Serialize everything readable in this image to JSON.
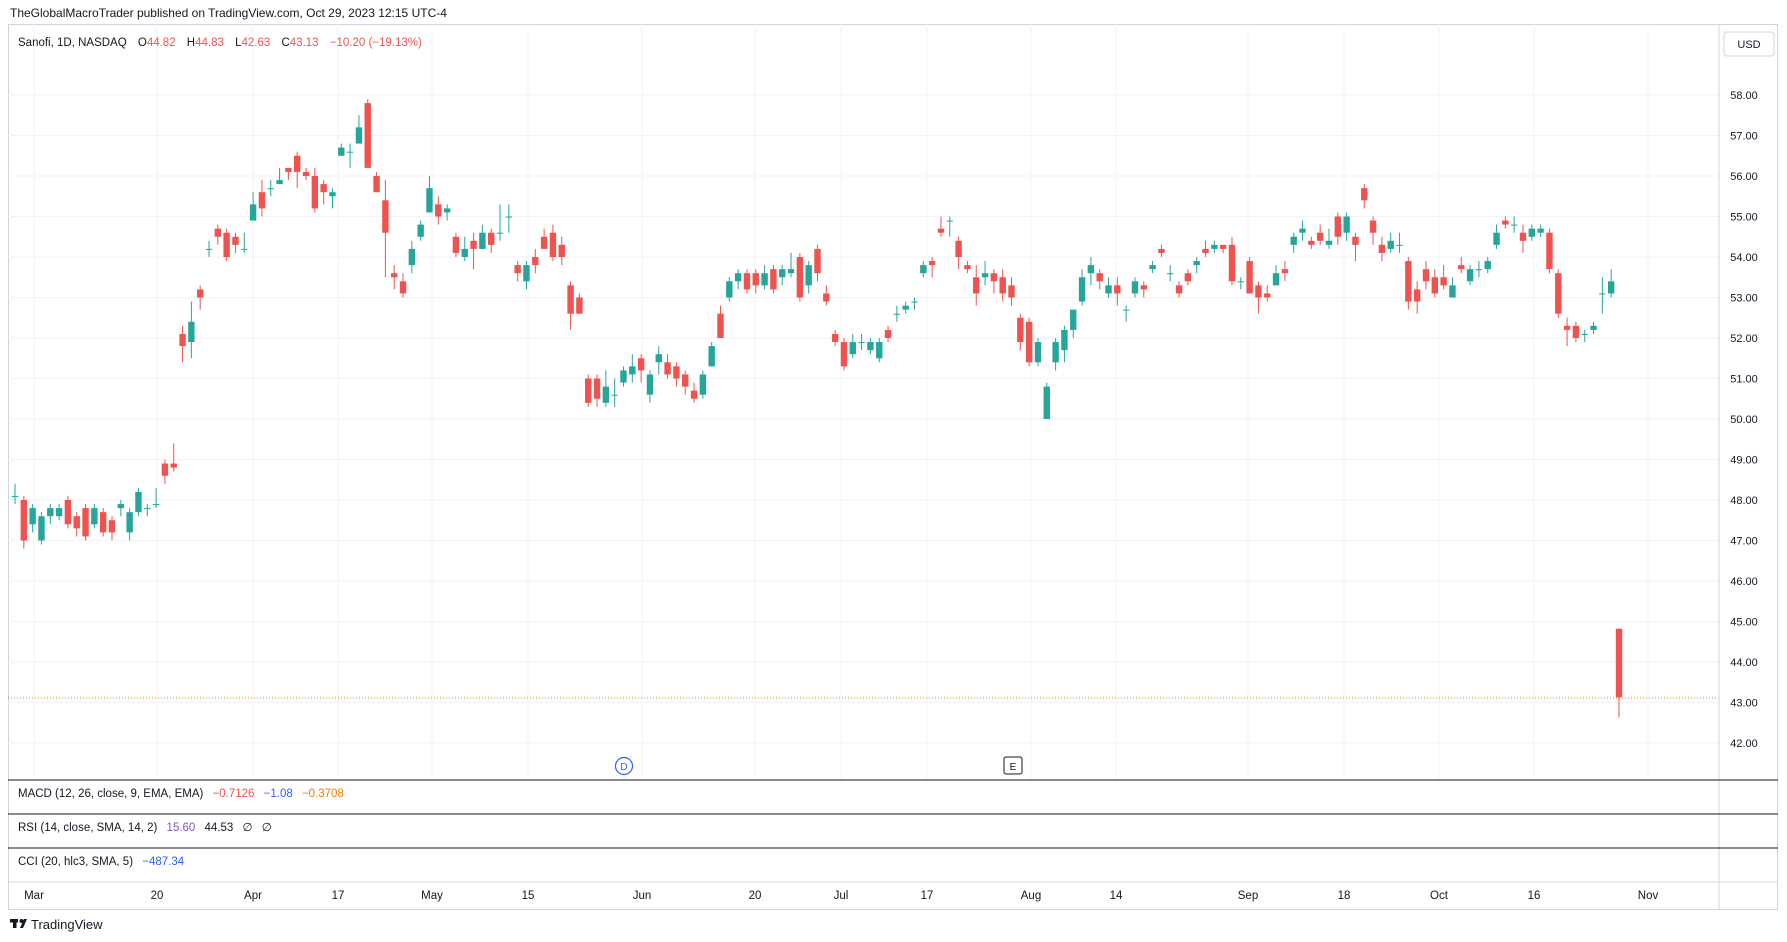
{
  "header": {
    "published": "TheGlobalMacroTrader published on TradingView.com, Oct 29, 2023 12:15 UTC-4"
  },
  "legend": {
    "symbol": "Sanofi, 1D, NASDAQ",
    "o_label": "O",
    "o": "44.82",
    "h_label": "H",
    "h": "44.83",
    "l_label": "L",
    "l": "42.63",
    "c_label": "C",
    "c": "43.13",
    "change": "−10.20 (−19.13%)"
  },
  "currency": "USD",
  "events": {
    "dividend": "D",
    "earnings": "E"
  },
  "indicators": {
    "macd": {
      "label": "MACD (12, 26, close, 9, EMA, EMA)",
      "v1": "−0.7126",
      "v2": "−1.08",
      "v3": "−0.3708"
    },
    "rsi": {
      "label": "RSI (14, close, SMA, 14, 2)",
      "v1": "15.60",
      "v2": "44.53",
      "v3": "∅",
      "v4": "∅"
    },
    "cci": {
      "label": "CCI (20, hlc3, SMA, 5)",
      "v1": "−487.34"
    }
  },
  "footer": {
    "brand": "TradingView"
  },
  "colors": {
    "up": "#26a69a",
    "down": "#ef5350",
    "grid": "#f0f3fa",
    "text": "#131722",
    "macd_blue": "#2962ff",
    "macd_orange": "#f57c00",
    "rsi_purple": "#7e57c2"
  },
  "chart_data": {
    "type": "candlestick",
    "title": "Sanofi, 1D, NASDAQ",
    "ylim": [
      41.5,
      58.5
    ],
    "y_ticks": [
      "42.00",
      "43.00",
      "44.00",
      "45.00",
      "46.00",
      "47.00",
      "48.00",
      "49.00",
      "50.00",
      "51.00",
      "52.00",
      "53.00",
      "54.00",
      "55.00",
      "56.00",
      "57.00",
      "58.00"
    ],
    "x_ticks": [
      "Mar",
      "20",
      "Apr",
      "17",
      "May",
      "15",
      "Jun",
      "20",
      "Jul",
      "17",
      "Aug",
      "14",
      "Sep",
      "18",
      "Oct",
      "16",
      "Nov"
    ],
    "last_price": 43.13,
    "candles": [
      [
        48.1,
        48.1,
        48.4,
        47.9
      ],
      [
        48.0,
        47.0,
        48.1,
        46.8
      ],
      [
        47.4,
        47.8,
        47.9,
        47.2
      ],
      [
        47.0,
        47.6,
        47.7,
        46.9
      ],
      [
        47.6,
        47.8,
        47.9,
        47.4
      ],
      [
        47.6,
        47.8,
        47.9,
        47.5
      ],
      [
        48.0,
        47.4,
        48.1,
        47.3
      ],
      [
        47.6,
        47.3,
        47.7,
        47.1
      ],
      [
        47.8,
        47.1,
        47.9,
        47.0
      ],
      [
        47.4,
        47.8,
        47.9,
        47.3
      ],
      [
        47.7,
        47.2,
        47.8,
        47.1
      ],
      [
        47.5,
        47.2,
        47.6,
        47.0
      ],
      [
        47.8,
        47.9,
        48.0,
        47.6
      ],
      [
        47.2,
        47.7,
        47.8,
        47.0
      ],
      [
        47.7,
        48.2,
        48.3,
        47.6
      ],
      [
        47.8,
        47.8,
        47.9,
        47.6
      ],
      [
        47.9,
        47.9,
        48.3,
        47.8
      ],
      [
        48.9,
        48.6,
        49.0,
        48.4
      ],
      [
        48.9,
        48.8,
        49.4,
        48.7
      ],
      [
        52.1,
        51.8,
        52.3,
        51.4
      ],
      [
        51.9,
        52.4,
        52.9,
        51.5
      ],
      [
        53.2,
        53.0,
        53.3,
        52.7
      ],
      [
        54.2,
        54.2,
        54.4,
        54.0
      ],
      [
        54.7,
        54.5,
        54.8,
        54.3
      ],
      [
        54.6,
        54.0,
        54.7,
        53.9
      ],
      [
        54.5,
        54.3,
        54.6,
        54.1
      ],
      [
        54.2,
        54.2,
        54.6,
        54.1
      ],
      [
        54.9,
        55.3,
        55.6,
        55.0
      ],
      [
        55.6,
        55.2,
        55.9,
        55.0
      ],
      [
        55.7,
        55.7,
        55.9,
        55.5
      ],
      [
        55.8,
        55.9,
        56.2,
        55.8
      ],
      [
        56.2,
        56.1,
        56.2,
        55.9
      ],
      [
        56.5,
        56.1,
        56.6,
        55.7
      ],
      [
        56.1,
        56.0,
        56.2,
        55.9
      ],
      [
        56.0,
        55.2,
        56.2,
        55.1
      ],
      [
        55.8,
        55.6,
        55.9,
        55.3
      ],
      [
        55.5,
        55.6,
        55.7,
        55.2
      ],
      [
        56.5,
        56.7,
        56.8,
        56.5
      ],
      [
        56.6,
        56.6,
        56.8,
        56.2
      ],
      [
        56.8,
        57.2,
        57.5,
        57.0
      ],
      [
        57.8,
        56.2,
        57.9,
        56.2
      ],
      [
        56.0,
        55.6,
        56.1,
        55.6
      ],
      [
        55.4,
        54.6,
        55.9,
        53.5
      ],
      [
        53.6,
        53.5,
        53.8,
        53.2
      ],
      [
        53.4,
        53.1,
        53.6,
        53.0
      ],
      [
        53.8,
        54.2,
        54.4,
        53.6
      ],
      [
        54.5,
        54.8,
        54.9,
        54.4
      ],
      [
        55.1,
        55.7,
        56.0,
        55.2
      ],
      [
        55.3,
        55.0,
        55.5,
        54.8
      ],
      [
        55.1,
        55.2,
        55.3,
        54.9
      ],
      [
        54.5,
        54.1,
        54.6,
        54.0
      ],
      [
        54.0,
        54.2,
        54.5,
        53.9
      ],
      [
        54.4,
        54.2,
        54.6,
        53.7
      ],
      [
        54.2,
        54.6,
        54.8,
        54.2
      ],
      [
        54.6,
        54.3,
        54.7,
        54.1
      ],
      [
        54.6,
        54.6,
        55.3,
        54.4
      ],
      [
        55.0,
        55.0,
        55.3,
        54.6
      ],
      [
        53.8,
        53.6,
        53.9,
        53.4
      ],
      [
        53.4,
        53.8,
        53.9,
        53.2
      ],
      [
        54.0,
        53.8,
        54.2,
        53.6
      ],
      [
        54.5,
        54.2,
        54.7,
        54.2
      ],
      [
        54.6,
        54.0,
        54.8,
        53.9
      ],
      [
        54.3,
        54.0,
        54.5,
        53.8
      ],
      [
        53.3,
        52.6,
        53.4,
        52.2
      ],
      [
        53.0,
        52.6,
        53.1,
        52.6
      ],
      [
        51.0,
        50.4,
        51.1,
        50.3
      ],
      [
        51.0,
        50.5,
        51.1,
        50.3
      ],
      [
        50.4,
        50.8,
        51.2,
        50.3
      ],
      [
        50.6,
        50.6,
        51.0,
        50.3
      ],
      [
        50.9,
        51.2,
        51.3,
        50.8
      ],
      [
        51.1,
        51.3,
        51.6,
        50.9
      ],
      [
        51.5,
        51.2,
        51.6,
        50.9
      ],
      [
        50.6,
        51.1,
        51.2,
        50.4
      ],
      [
        51.4,
        51.6,
        51.8,
        51.1
      ],
      [
        51.4,
        51.1,
        51.6,
        51.0
      ],
      [
        51.3,
        51.0,
        51.4,
        50.8
      ],
      [
        51.1,
        50.8,
        51.2,
        50.6
      ],
      [
        50.7,
        50.5,
        50.9,
        50.4
      ],
      [
        50.6,
        51.1,
        51.2,
        50.5
      ],
      [
        51.3,
        51.8,
        51.9,
        51.3
      ],
      [
        52.6,
        52.0,
        52.8,
        52.0
      ],
      [
        53.0,
        53.4,
        53.5,
        52.9
      ],
      [
        53.4,
        53.6,
        53.7,
        53.2
      ],
      [
        53.6,
        53.2,
        53.7,
        53.1
      ],
      [
        53.6,
        53.3,
        53.7,
        53.1
      ],
      [
        53.3,
        53.6,
        53.8,
        53.2
      ],
      [
        53.7,
        53.2,
        53.8,
        53.1
      ],
      [
        53.5,
        53.7,
        53.8,
        53.3
      ],
      [
        53.6,
        53.7,
        54.1,
        53.5
      ],
      [
        54.0,
        53.0,
        54.1,
        52.9
      ],
      [
        53.3,
        53.8,
        53.9,
        53.1
      ],
      [
        54.2,
        53.6,
        54.3,
        53.4
      ],
      [
        53.1,
        52.9,
        53.3,
        52.8
      ],
      [
        52.1,
        51.9,
        52.2,
        51.8
      ],
      [
        51.9,
        51.3,
        52.0,
        51.2
      ],
      [
        51.6,
        51.9,
        52.1,
        51.5
      ],
      [
        51.9,
        51.9,
        52.1,
        51.7
      ],
      [
        51.7,
        51.9,
        52.0,
        51.6
      ],
      [
        51.5,
        51.9,
        52.0,
        51.4
      ],
      [
        52.2,
        52.0,
        52.3,
        51.9
      ],
      [
        52.6,
        52.6,
        52.8,
        52.4
      ],
      [
        52.7,
        52.8,
        52.9,
        52.6
      ],
      [
        52.9,
        52.9,
        53.0,
        52.7
      ],
      [
        53.6,
        53.8,
        53.9,
        53.5
      ],
      [
        53.9,
        53.8,
        54.0,
        53.5
      ],
      [
        54.7,
        54.6,
        55.0,
        54.5
      ],
      [
        54.9,
        54.9,
        55.0,
        54.5
      ],
      [
        54.4,
        54.0,
        54.5,
        53.7
      ],
      [
        53.8,
        53.7,
        53.9,
        53.6
      ],
      [
        53.5,
        53.1,
        53.8,
        52.8
      ],
      [
        53.5,
        53.6,
        53.9,
        53.3
      ],
      [
        53.6,
        53.4,
        53.7,
        53.1
      ],
      [
        53.5,
        53.1,
        53.7,
        52.9
      ],
      [
        53.3,
        53.0,
        53.5,
        52.8
      ],
      [
        52.5,
        51.9,
        52.6,
        51.7
      ],
      [
        52.4,
        51.4,
        52.5,
        51.3
      ],
      [
        51.4,
        51.9,
        52.0,
        51.3
      ],
      [
        50.0,
        50.8,
        50.9,
        50.0
      ],
      [
        51.4,
        51.9,
        52.0,
        51.2
      ],
      [
        51.7,
        52.2,
        52.3,
        51.4
      ],
      [
        52.2,
        52.7,
        52.7,
        52.0
      ],
      [
        52.9,
        53.5,
        53.7,
        52.8
      ],
      [
        53.6,
        53.8,
        54.0,
        53.3
      ],
      [
        53.6,
        53.4,
        53.7,
        53.2
      ],
      [
        53.1,
        53.3,
        53.5,
        53.0
      ],
      [
        53.3,
        53.1,
        53.5,
        52.8
      ],
      [
        52.7,
        52.7,
        52.8,
        52.4
      ],
      [
        53.1,
        53.4,
        53.5,
        53.0
      ],
      [
        53.3,
        53.2,
        53.4,
        53.0
      ],
      [
        53.7,
        53.8,
        53.9,
        53.6
      ],
      [
        54.2,
        54.1,
        54.3,
        54.0
      ],
      [
        53.6,
        53.6,
        53.8,
        53.4
      ],
      [
        53.3,
        53.1,
        53.4,
        53.0
      ],
      [
        53.6,
        53.4,
        53.7,
        53.3
      ],
      [
        53.8,
        53.9,
        54.0,
        53.6
      ],
      [
        54.2,
        54.1,
        54.4,
        54.0
      ],
      [
        54.2,
        54.3,
        54.4,
        54.1
      ],
      [
        54.3,
        54.2,
        54.3,
        54.1
      ],
      [
        54.3,
        53.4,
        54.5,
        53.3
      ],
      [
        53.4,
        53.4,
        53.5,
        53.2
      ],
      [
        53.9,
        53.1,
        54.0,
        53.1
      ],
      [
        53.3,
        53.0,
        53.4,
        52.6
      ],
      [
        53.1,
        53.0,
        53.3,
        52.9
      ],
      [
        53.3,
        53.6,
        53.8,
        53.3
      ],
      [
        53.7,
        53.6,
        53.9,
        53.4
      ],
      [
        54.3,
        54.5,
        54.6,
        54.1
      ],
      [
        54.6,
        54.7,
        54.9,
        54.4
      ],
      [
        54.4,
        54.3,
        54.5,
        54.2
      ],
      [
        54.6,
        54.4,
        54.8,
        54.3
      ],
      [
        54.3,
        54.4,
        54.7,
        54.2
      ],
      [
        55.0,
        54.5,
        55.1,
        54.3
      ],
      [
        54.6,
        55.0,
        55.1,
        54.4
      ],
      [
        54.5,
        54.3,
        54.6,
        53.9
      ],
      [
        55.7,
        55.4,
        55.8,
        55.2
      ],
      [
        54.9,
        54.6,
        55.0,
        54.3
      ],
      [
        54.3,
        54.1,
        54.5,
        53.9
      ],
      [
        54.2,
        54.4,
        54.6,
        54.1
      ],
      [
        54.3,
        54.3,
        54.6,
        54.1
      ],
      [
        53.9,
        52.9,
        54.0,
        52.7
      ],
      [
        53.2,
        52.9,
        53.4,
        52.6
      ],
      [
        53.7,
        53.4,
        53.9,
        53.2
      ],
      [
        53.5,
        53.1,
        53.7,
        53.0
      ],
      [
        53.5,
        53.3,
        53.8,
        53.2
      ],
      [
        53.0,
        53.3,
        53.5,
        53.0
      ],
      [
        53.8,
        53.7,
        54.0,
        53.6
      ],
      [
        53.4,
        53.7,
        53.8,
        53.3
      ],
      [
        53.7,
        53.7,
        53.9,
        53.5
      ],
      [
        53.7,
        53.9,
        54.0,
        53.6
      ],
      [
        54.3,
        54.6,
        54.8,
        54.2
      ],
      [
        54.9,
        54.8,
        55.0,
        54.7
      ],
      [
        54.8,
        54.8,
        55.0,
        54.6
      ],
      [
        54.6,
        54.4,
        54.8,
        54.1
      ],
      [
        54.5,
        54.7,
        54.8,
        54.4
      ],
      [
        54.6,
        54.7,
        54.8,
        54.5
      ],
      [
        54.6,
        53.7,
        54.7,
        53.6
      ],
      [
        53.6,
        52.6,
        53.7,
        52.5
      ],
      [
        52.3,
        52.2,
        52.5,
        51.8
      ],
      [
        52.3,
        52.0,
        52.4,
        51.9
      ],
      [
        52.1,
        52.1,
        52.2,
        51.9
      ],
      [
        52.2,
        52.3,
        52.4,
        52.1
      ],
      [
        53.1,
        53.1,
        53.5,
        52.6
      ],
      [
        53.1,
        53.4,
        53.7,
        53.0
      ],
      [
        44.82,
        43.13,
        44.83,
        42.63
      ]
    ]
  }
}
